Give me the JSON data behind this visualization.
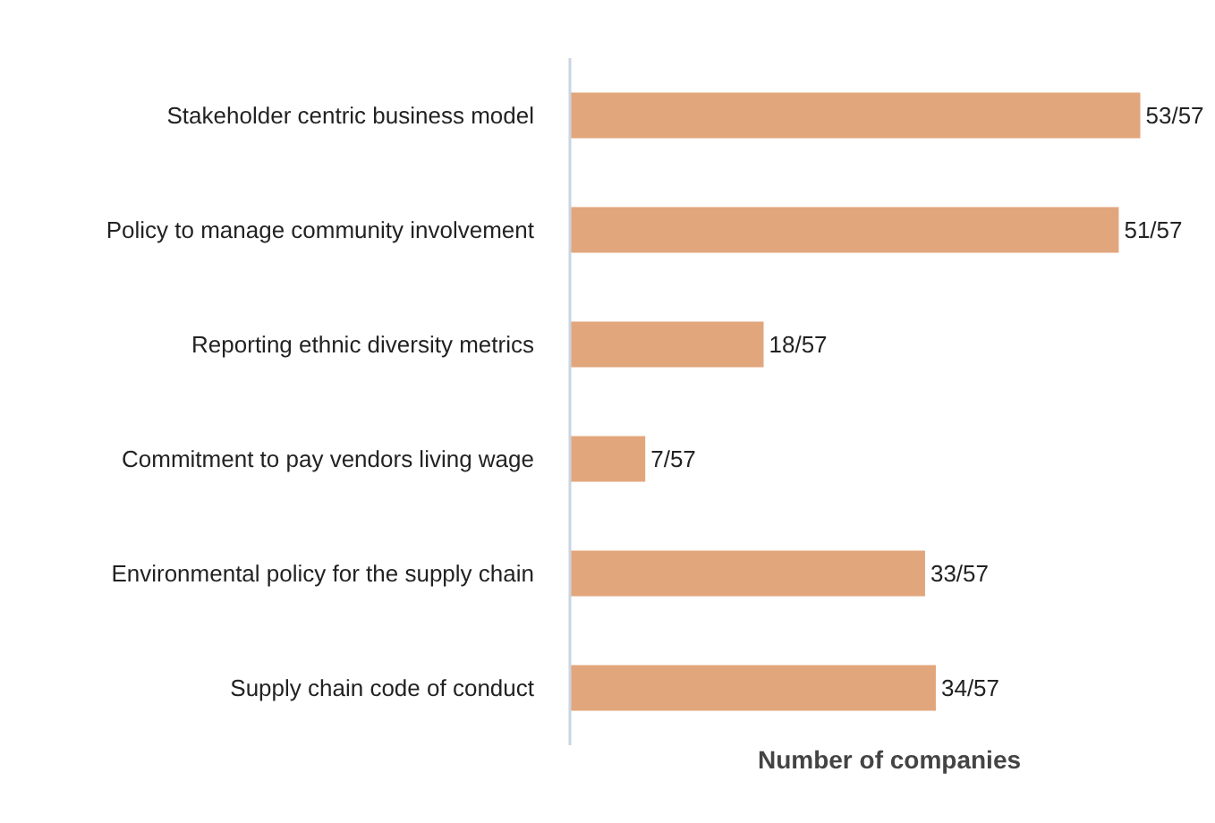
{
  "chart_data": {
    "type": "bar",
    "orientation": "horizontal",
    "xlabel": "Number of companies",
    "categories": [
      "Stakeholder centric business model",
      "Policy to manage community involvement",
      "Reporting ethnic diversity metrics",
      "Commitment to pay vendors living wage",
      "Environmental policy for the supply chain",
      "Supply chain code of conduct"
    ],
    "values": [
      53,
      51,
      18,
      7,
      33,
      34
    ],
    "value_labels": [
      "53/57",
      "51/57",
      "18/57",
      "7/57",
      "33/57",
      "34/57"
    ],
    "color": "#e2a67c",
    "tick_labels": "y",
    "grid": false
  }
}
